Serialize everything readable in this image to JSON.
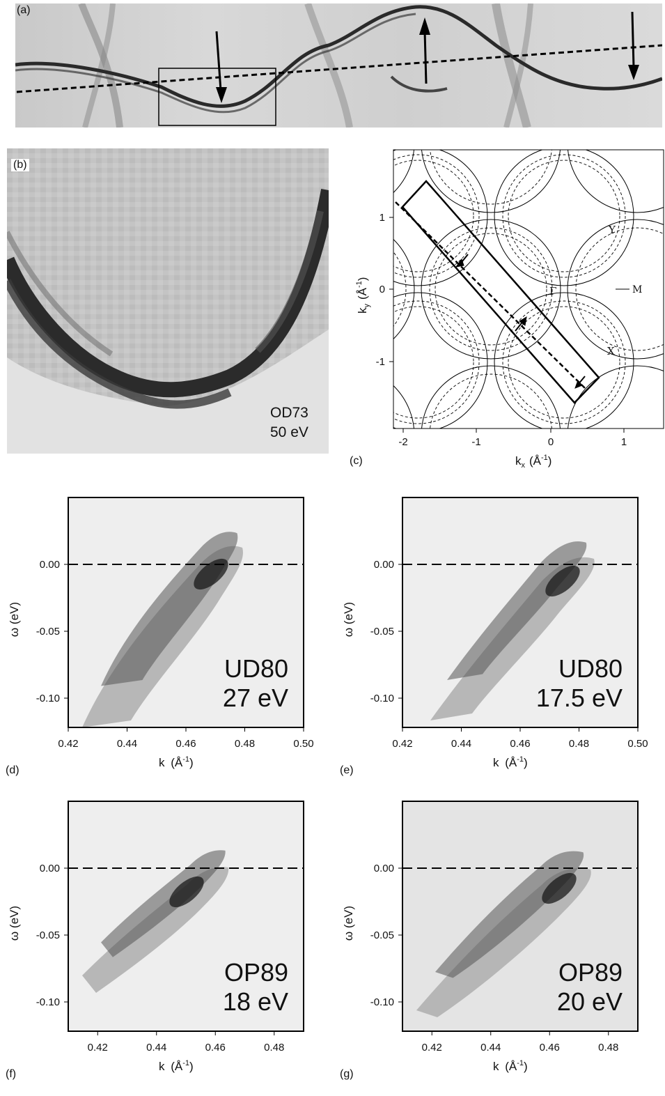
{
  "figure": {
    "panel_a": {
      "label": "(a)"
    },
    "panel_b": {
      "label": "(b)",
      "sample": "OD73",
      "energy": "50 eV"
    },
    "panel_c": {
      "label": "(c)",
      "xlabel": "k",
      "xlabel_sub": "x",
      "xlabel_unit": "(Å",
      "ylabel": "k",
      "ylabel_sub": "y",
      "ylabel_unit": "(Å",
      "exp": "-1",
      "close": ")",
      "xticks": [
        "-2",
        "-1",
        "0",
        "1"
      ],
      "yticks": [
        "1",
        "0",
        "-1"
      ],
      "points": {
        "gamma": "Γ",
        "Y": "Y",
        "X": "X",
        "M": "M"
      }
    },
    "panels_edc": [
      {
        "id": "d",
        "label": "(d)",
        "sample": "UD80",
        "energy": "27 eV",
        "xticks": [
          "0.42",
          "0.44",
          "0.46",
          "0.48",
          "0.50"
        ],
        "xrange": [
          0.42,
          0.5
        ]
      },
      {
        "id": "e",
        "label": "(e)",
        "sample": "UD80",
        "energy": "17.5 eV",
        "xticks": [
          "0.42",
          "0.44",
          "0.46",
          "0.48",
          "0.50"
        ],
        "xrange": [
          0.42,
          0.5
        ]
      },
      {
        "id": "f",
        "label": "(f)",
        "sample": "OP89",
        "energy": "18 eV",
        "xticks": [
          "0.42",
          "0.44",
          "0.46",
          "0.48"
        ],
        "xrange": [
          0.41,
          0.49
        ]
      },
      {
        "id": "g",
        "label": "(g)",
        "sample": "OP89",
        "energy": "20 eV",
        "xticks": [
          "0.42",
          "0.44",
          "0.46",
          "0.48"
        ],
        "xrange": [
          0.41,
          0.49
        ]
      }
    ],
    "edc_axes": {
      "ylabel": "ω (eV)",
      "xlabel": "k",
      "xlabel_unit": "(Å",
      "exp": "-1",
      "close": ")",
      "yticks": [
        "0.00",
        "-0.05",
        "-0.10"
      ]
    }
  }
}
